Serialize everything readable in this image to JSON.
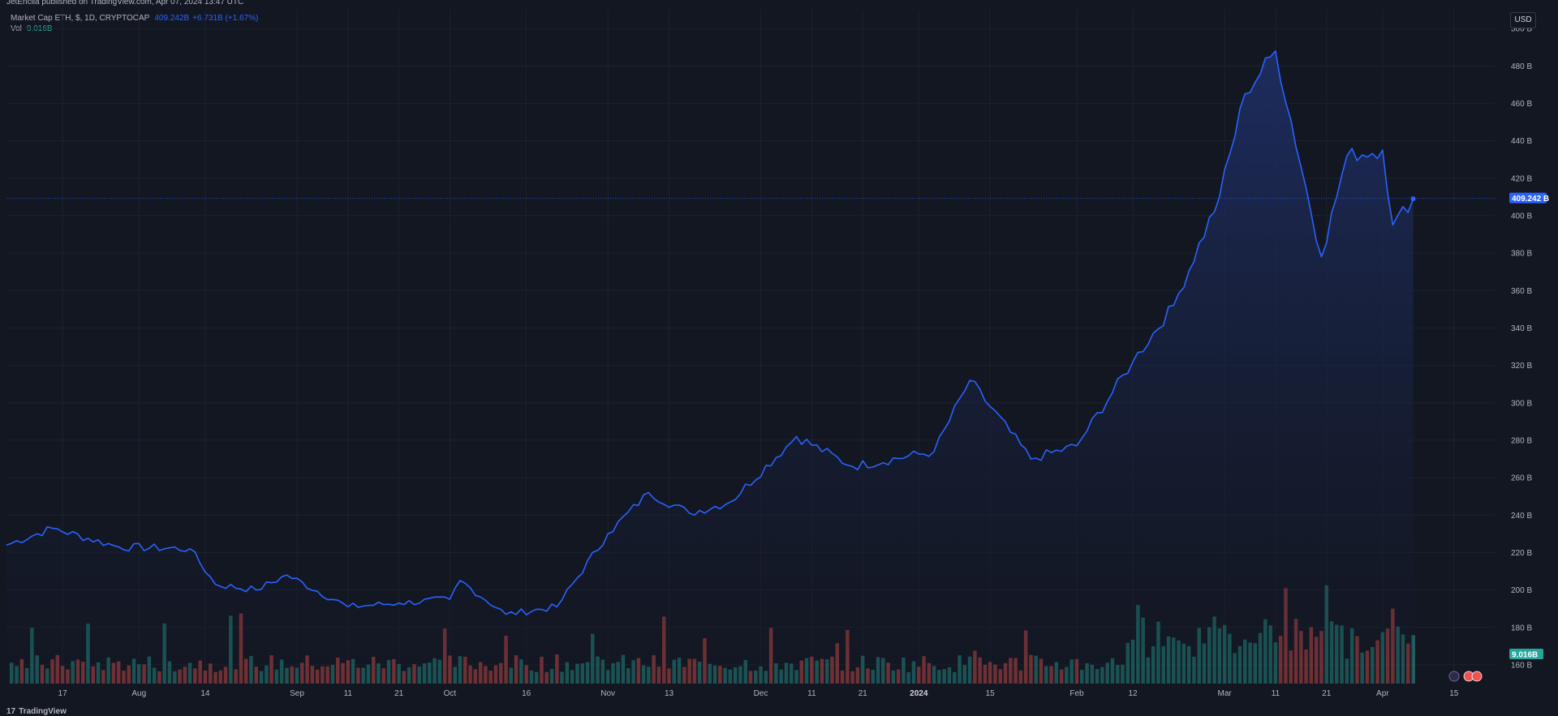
{
  "header": {
    "published_text": "JetEncila published on TradingView.com, Apr 07, 2024 13:47 UTC"
  },
  "legend": {
    "symbol_text": "Market Cap ETH, $, 1D, CRYPTOCAP",
    "last_value": "409.242B",
    "change": "+6.731B (+1.67%)",
    "volume_label": "Vol",
    "volume_value": "9.016B"
  },
  "currency_button": "USD",
  "footer": {
    "logo_text": "TradingView"
  },
  "colors": {
    "line": "#2962ff",
    "area_top": "#1e2f66",
    "area_bottom": "#131722",
    "volume_up": "#26a69a",
    "volume_down": "#ef5350",
    "grid": "#1e222d",
    "price_label_bg": "#2962ff",
    "volume_label_bg": "#26a69a"
  },
  "chart_data": {
    "type": "area",
    "title": "Market Cap ETH, $, 1D, CRYPTOCAP",
    "ylabel": "",
    "xlabel": "",
    "y_unit": "B USD",
    "ylim": [
      150,
      510
    ],
    "y_ticks": [
      160,
      180,
      200,
      220,
      240,
      260,
      280,
      300,
      320,
      340,
      360,
      380,
      400,
      420,
      440,
      460,
      480,
      500
    ],
    "y_tick_labels": [
      "160 B",
      "180 B",
      "200 B",
      "220 B",
      "240 B",
      "260 B",
      "280 B",
      "300 B",
      "320 B",
      "340 B",
      "360 B",
      "380 B",
      "400 B",
      "420 B",
      "440 B",
      "460 B",
      "480 B",
      "500 B"
    ],
    "x_tick_labels": [
      {
        "date": "2023-07-17",
        "label": "17",
        "bold": false
      },
      {
        "date": "2023-08-01",
        "label": "Aug",
        "bold": false
      },
      {
        "date": "2023-08-14",
        "label": "14",
        "bold": false
      },
      {
        "date": "2023-09-01",
        "label": "Sep",
        "bold": false
      },
      {
        "date": "2023-09-11",
        "label": "11",
        "bold": false
      },
      {
        "date": "2023-09-21",
        "label": "21",
        "bold": false
      },
      {
        "date": "2023-10-01",
        "label": "Oct",
        "bold": false
      },
      {
        "date": "2023-10-16",
        "label": "16",
        "bold": false
      },
      {
        "date": "2023-11-01",
        "label": "Nov",
        "bold": false
      },
      {
        "date": "2023-11-13",
        "label": "13",
        "bold": false
      },
      {
        "date": "2023-12-01",
        "label": "Dec",
        "bold": false
      },
      {
        "date": "2023-12-11",
        "label": "11",
        "bold": false
      },
      {
        "date": "2023-12-21",
        "label": "21",
        "bold": false
      },
      {
        "date": "2024-01-01",
        "label": "2024",
        "bold": true
      },
      {
        "date": "2024-01-15",
        "label": "15",
        "bold": false
      },
      {
        "date": "2024-02-01",
        "label": "Feb",
        "bold": false
      },
      {
        "date": "2024-02-12",
        "label": "12",
        "bold": false
      },
      {
        "date": "2024-03-01",
        "label": "Mar",
        "bold": false
      },
      {
        "date": "2024-03-11",
        "label": "11",
        "bold": false
      },
      {
        "date": "2024-03-21",
        "label": "21",
        "bold": false
      },
      {
        "date": "2024-04-01",
        "label": "Apr",
        "bold": false
      },
      {
        "date": "2024-04-15",
        "label": "15",
        "bold": false
      }
    ],
    "x_range": [
      "2023-07-06",
      "2024-04-23"
    ],
    "last_price": 409.242,
    "last_price_label": "409.242 B",
    "volume_label": "9.016B",
    "series": [
      {
        "x": [
          "2023-07-06",
          "2023-07-15",
          "2023-07-28",
          "2023-08-11",
          "2023-08-16",
          "2023-08-24",
          "2023-08-30",
          "2023-09-11",
          "2023-09-21",
          "2023-10-01",
          "2023-10-03",
          "2023-10-12",
          "2023-10-22",
          "2023-11-01",
          "2023-11-09",
          "2023-11-17",
          "2023-11-25",
          "2023-12-08",
          "2023-12-19",
          "2024-01-04",
          "2024-01-11",
          "2024-01-23",
          "2024-02-01",
          "2024-02-12",
          "2024-02-20",
          "2024-02-29",
          "2024-03-05",
          "2024-03-11",
          "2024-03-20",
          "2024-03-25",
          "2024-04-01",
          "2024-04-03",
          "2024-04-07"
        ],
        "y": [
          224,
          233,
          223,
          222,
          203,
          200,
          208,
          191,
          193,
          195,
          205,
          187,
          191,
          230,
          252,
          241,
          247,
          282,
          266,
          274,
          312,
          270,
          277,
          322,
          352,
          410,
          465,
          488,
          378,
          432,
          435,
          395,
          409
        ]
      }
    ],
    "volume_up_color": "#26a69a",
    "volume_down_color": "#ef5350"
  }
}
